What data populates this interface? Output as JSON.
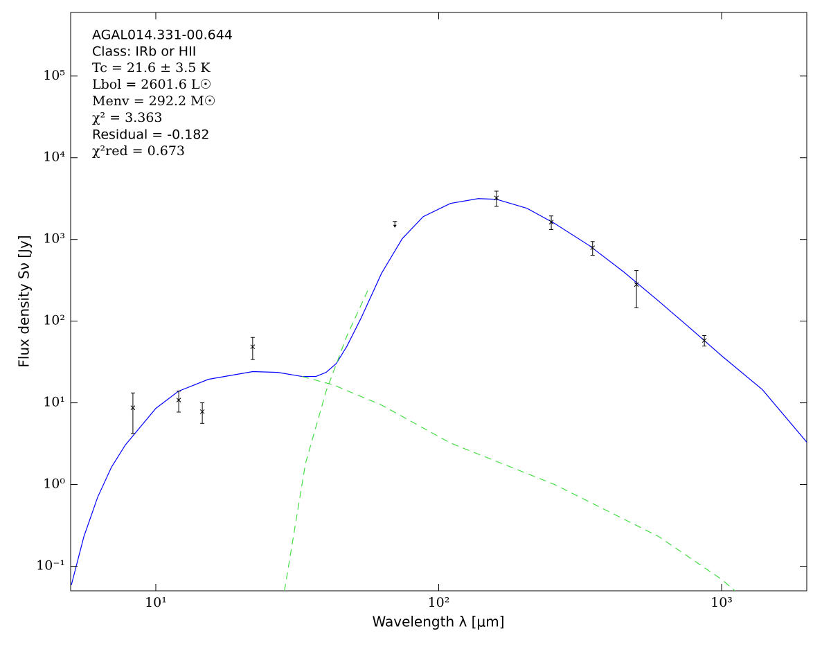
{
  "chart_data": {
    "type": "line",
    "xlabel": "Wavelength λ [μm]",
    "ylabel": "Flux density Sν [Jy]",
    "annotations": [
      "AGAL014.331-00.644",
      "Class: IRb or HII",
      "Tc = 21.6 ± 3.5 K",
      "Lbol = 2601.6 L☉",
      "Menv = 292.2 M☉",
      "χ² = 3.363",
      "Residual = -0.182",
      "χ²red = 0.673"
    ],
    "xscale": "log",
    "yscale": "log",
    "xlim": [
      5,
      2000
    ],
    "ylim": [
      0.05,
      600000
    ],
    "xticks": [
      {
        "value": 10,
        "label": "10¹"
      },
      {
        "value": 100,
        "label": "10²"
      },
      {
        "value": 1000,
        "label": "10³"
      }
    ],
    "yticks": [
      {
        "value": 0.1,
        "label": "10⁻¹"
      },
      {
        "value": 1,
        "label": "10⁰"
      },
      {
        "value": 10,
        "label": "10¹"
      },
      {
        "value": 100,
        "label": "10²"
      },
      {
        "value": 1000,
        "label": "10³"
      },
      {
        "value": 10000,
        "label": "10⁴"
      },
      {
        "value": 100000,
        "label": "10⁵"
      }
    ],
    "series": [
      {
        "style": "solid",
        "color": "#0000ff",
        "x": [
          5.03,
          5.57,
          6.23,
          6.97,
          7.8,
          10,
          12.04,
          15.35,
          22,
          27,
          32.9,
          36.8,
          40,
          43.5,
          47.4,
          53.1,
          62.8,
          74.3,
          88.1,
          110,
          138,
          160,
          205,
          257,
          341,
          451,
          599,
          794,
          1000,
          1394,
          2012
        ],
        "values": [
          0.059,
          0.231,
          0.7,
          1.63,
          3.04,
          8.55,
          13.9,
          19.4,
          24.1,
          23.6,
          21,
          21,
          23.6,
          30.4,
          49.5,
          108,
          385,
          1020,
          1900,
          2760,
          3160,
          3100,
          2410,
          1570,
          839,
          400,
          176,
          76,
          37.7,
          14.5,
          3.22
        ]
      },
      {
        "style": "dashed",
        "color": "#44dd44",
        "x": [
          32.9,
          42.4,
          62.8,
          110,
          257,
          599,
          1000,
          1115
        ],
        "values": [
          21,
          16.6,
          9.4,
          3.22,
          1,
          0.231,
          0.069,
          0.05
        ]
      },
      {
        "style": "dashed",
        "color": "#44dd44",
        "x": [
          28.5,
          33.8,
          40,
          47.4,
          56.1
        ],
        "values": [
          0.05,
          1.8,
          13.9,
          66.4,
          236
        ]
      },
      {
        "style": "points",
        "color": "#000000",
        "x": [
          8.3,
          12.05,
          14.6,
          22,
          160,
          250,
          350,
          500,
          869
        ],
        "values": [
          8.7,
          10.8,
          7.8,
          48.5,
          3220,
          1630,
          791,
          281,
          58
        ],
        "errors": [
          4.5,
          3.1,
          2.2,
          14.6,
          680,
          310,
          150,
          135,
          8.5
        ]
      },
      {
        "style": "upper-limit",
        "color": "#000000",
        "x": [
          70
        ],
        "values": [
          1660
        ]
      }
    ]
  }
}
